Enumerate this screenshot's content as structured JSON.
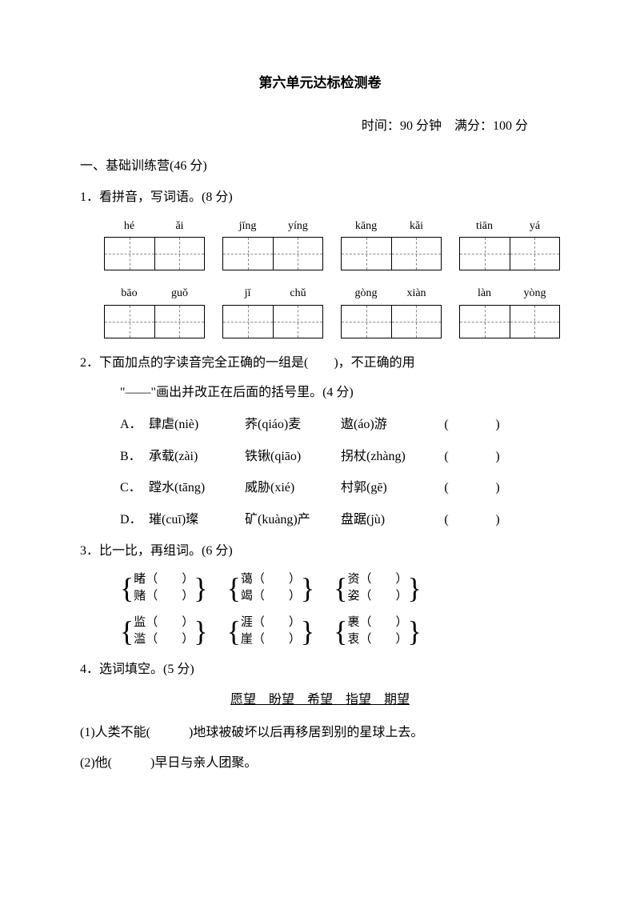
{
  "title": "第六单元达标检测卷",
  "meta": {
    "time_label": "时间：",
    "time_value": "90 分钟",
    "score_label": "满分：",
    "score_value": "100 分"
  },
  "section1": {
    "heading": "一、基础训练营(46 分)"
  },
  "q1": {
    "prompt": "1．看拼音，写词语。(8 分)",
    "row1": [
      {
        "a": "hé",
        "b": "ǎi"
      },
      {
        "a": "jīng",
        "b": "yíng"
      },
      {
        "a": "kāng",
        "b": "kǎi"
      },
      {
        "a": "tiān",
        "b": "yá"
      }
    ],
    "row2": [
      {
        "a": "bāo",
        "b": "guǒ"
      },
      {
        "a": "jī",
        "b": "chǔ"
      },
      {
        "a": "gòng",
        "b": "xiàn"
      },
      {
        "a": "làn",
        "b": "yòng"
      }
    ]
  },
  "q2": {
    "prompt_a": "2．下面加点的字读音完全正确的一组是(　　)，不正确的用",
    "prompt_b": "\"——\"画出并改正在后面的括号里。(4 分)",
    "opts": [
      {
        "lbl": "A．",
        "w1": "肆虐(niè)",
        "w2": "荞(qiáo)麦",
        "w3": "遨(áo)游"
      },
      {
        "lbl": "B．",
        "w1": "承载(zài)",
        "w2": "铁锹(qiāo)",
        "w3": "拐杖(zhàng)"
      },
      {
        "lbl": "C．",
        "w1": "蹚水(tāng)",
        "w2": "威胁(xié)",
        "w3": "村郭(gē)"
      },
      {
        "lbl": "D．",
        "w1": "璀(cuī)璨",
        "w2": "矿(kuàng)产",
        "w3": "盘踞(jù)"
      }
    ]
  },
  "q3": {
    "prompt": "3．比一比，再组词。(6 分)",
    "row1": [
      {
        "top": "睹（　　）",
        "bot": "赌（　　）"
      },
      {
        "top": "蔼（　　）",
        "bot": "竭（　　）"
      },
      {
        "top": "资（　　）",
        "bot": "姿（　　）"
      }
    ],
    "row2": [
      {
        "top": "监（　　）",
        "bot": "滥（　　）"
      },
      {
        "top": "涯（　　）",
        "bot": "崖（　　）"
      },
      {
        "top": "裹（　　）",
        "bot": "衷（　　）"
      }
    ]
  },
  "q4": {
    "prompt": "4．选词填空。(5 分)",
    "bank": "愿望　盼望　希望　指望　期望",
    "s1": "(1)人类不能(　　　)地球被破坏以后再移居到别的星球上去。",
    "s2": "(2)他(　　　)早日与亲人团聚。"
  }
}
